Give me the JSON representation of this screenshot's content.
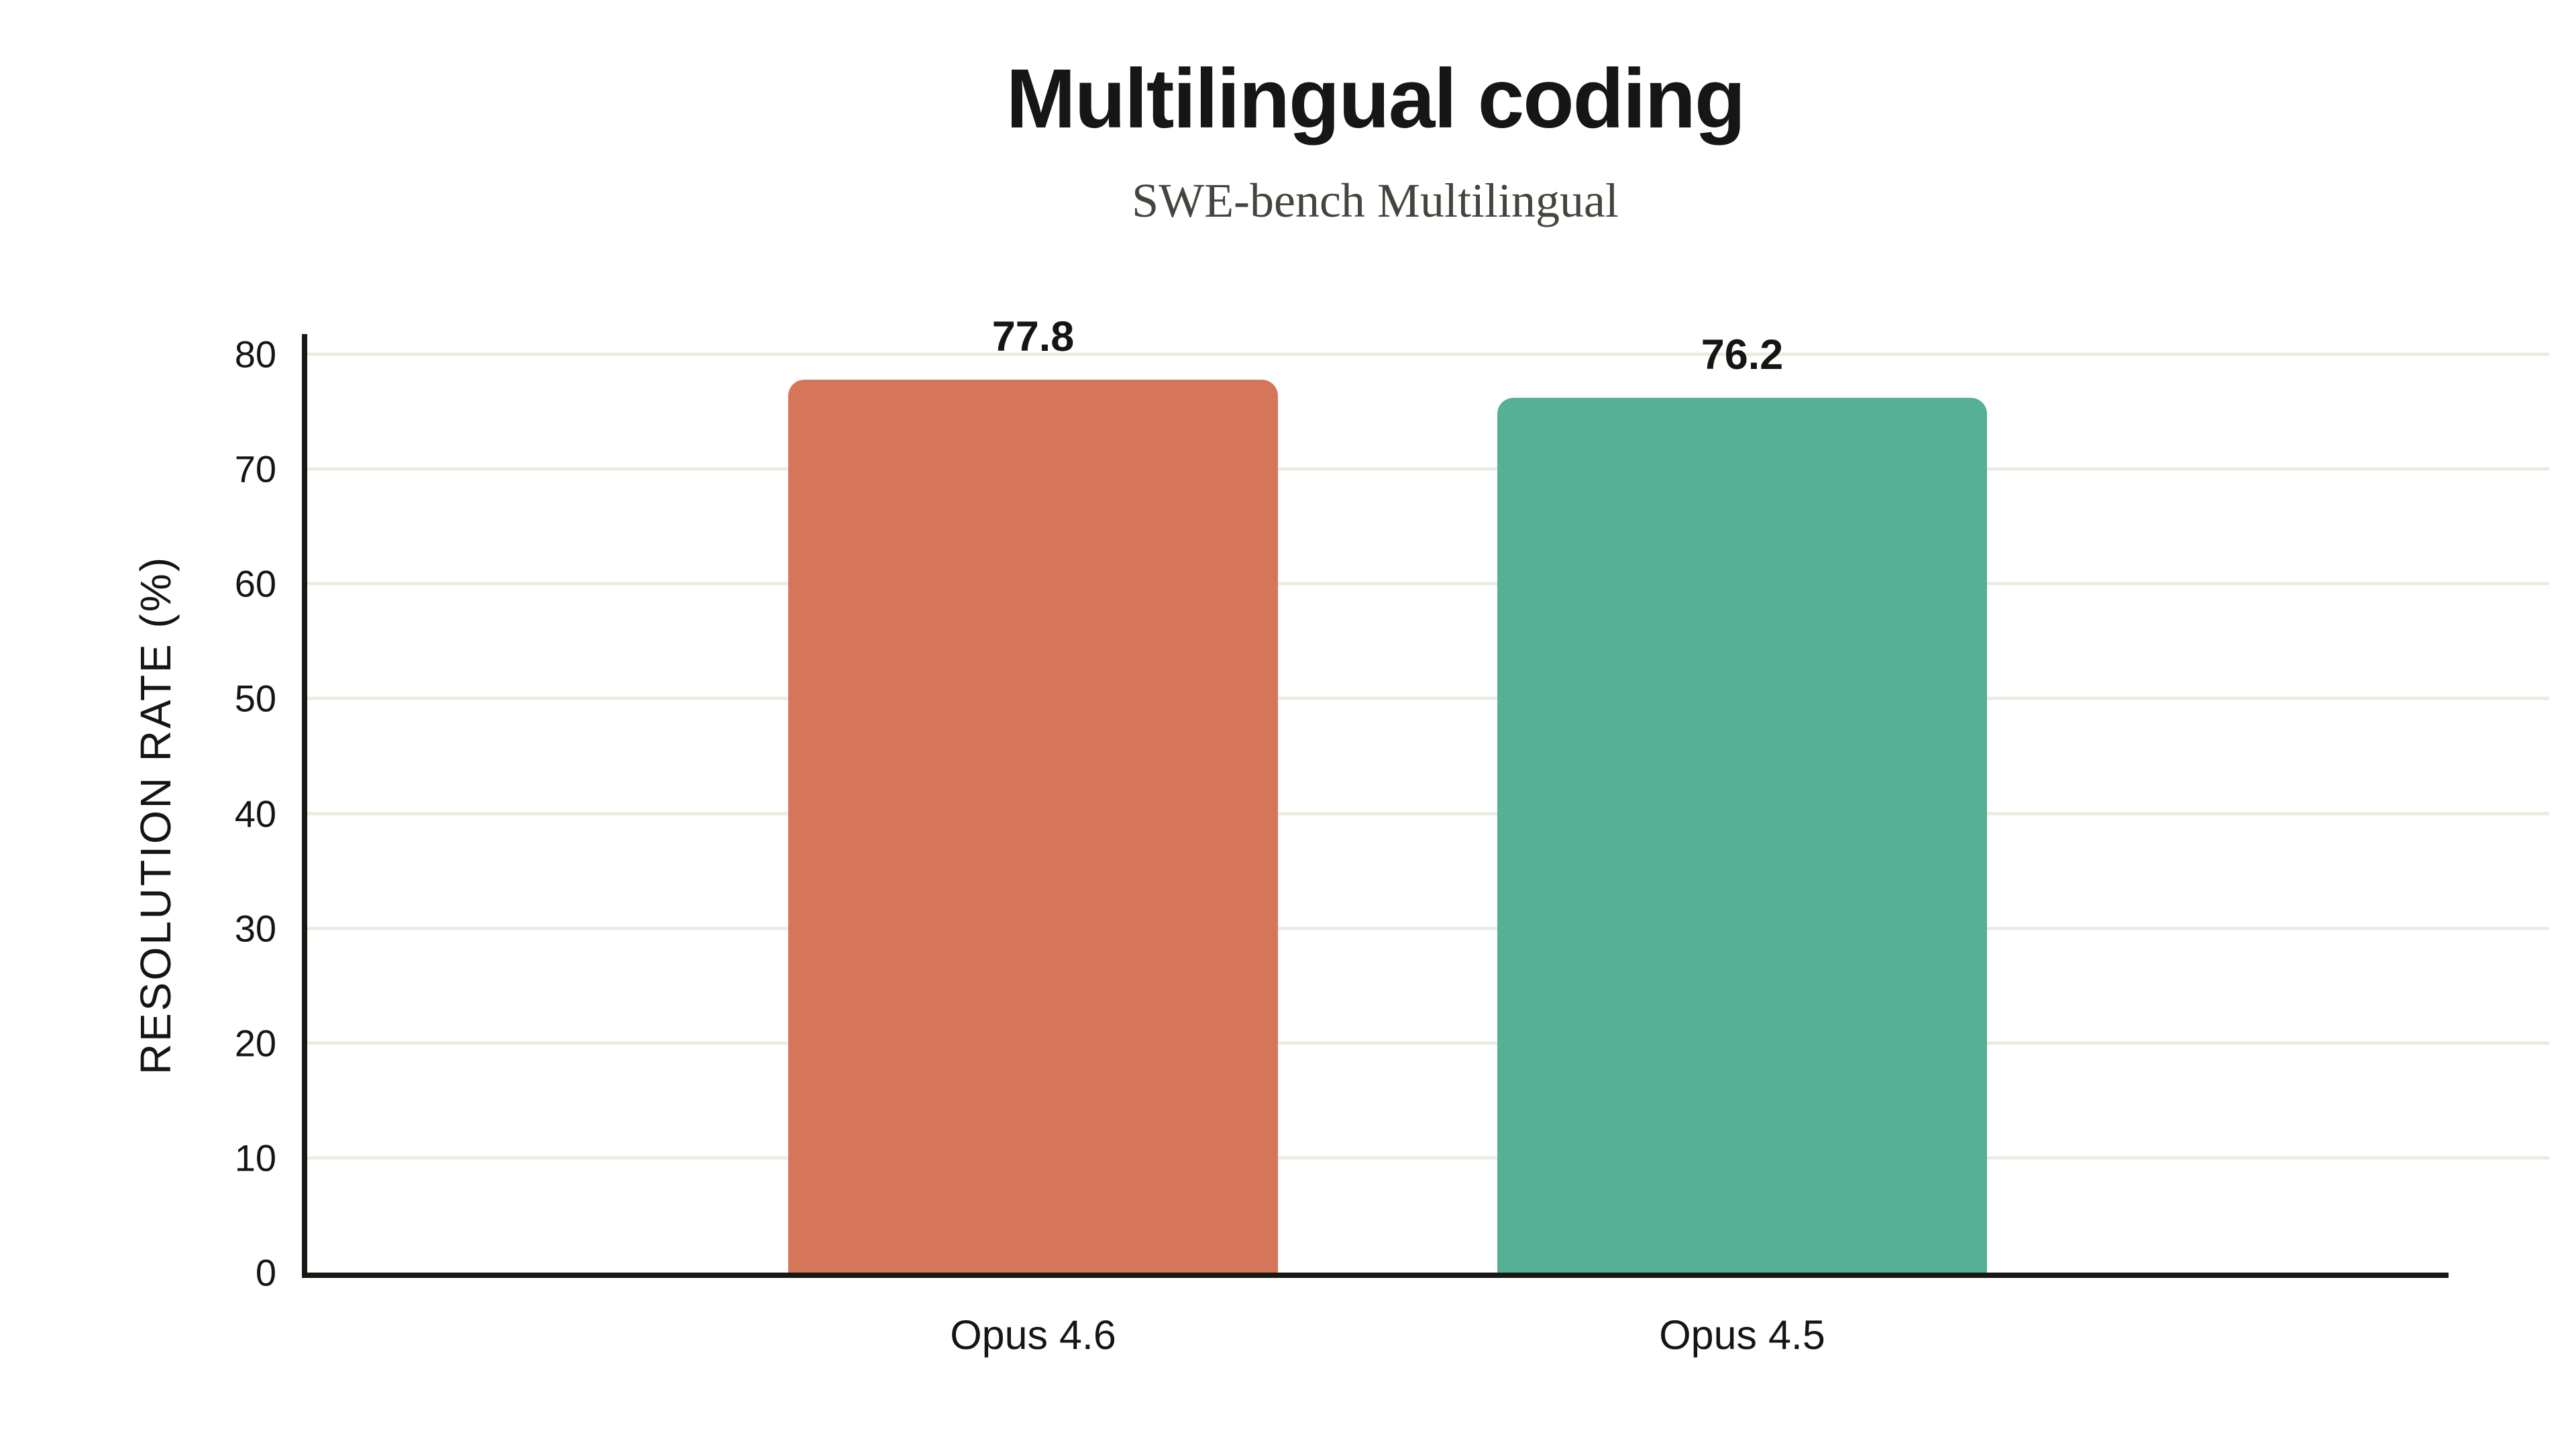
{
  "header": {
    "title": "Multilingual coding",
    "subtitle": "SWE-bench Multilingual"
  },
  "chart_data": {
    "type": "bar",
    "title": "Multilingual coding",
    "subtitle": "SWE-bench Multilingual",
    "categories": [
      "Opus 4.6",
      "Opus 4.5"
    ],
    "values": [
      77.8,
      76.2
    ],
    "value_labels": [
      "77.8",
      "76.2"
    ],
    "bar_colors": [
      "#D5765A",
      "#56B094"
    ],
    "xlabel": "",
    "ylabel": "RESOLUTION RATE (%)",
    "ylim": [
      0,
      80
    ],
    "yticks": [
      0,
      10,
      20,
      30,
      40,
      50,
      60,
      70,
      80
    ],
    "grid": "horizontal",
    "legend": "none",
    "colors": {
      "title_text": "#161614",
      "subtitle_text": "#45443E",
      "label_text": "#151513",
      "axis": "#181815",
      "gridline": "#ECEBE1",
      "background": "#FFFFFF"
    }
  }
}
